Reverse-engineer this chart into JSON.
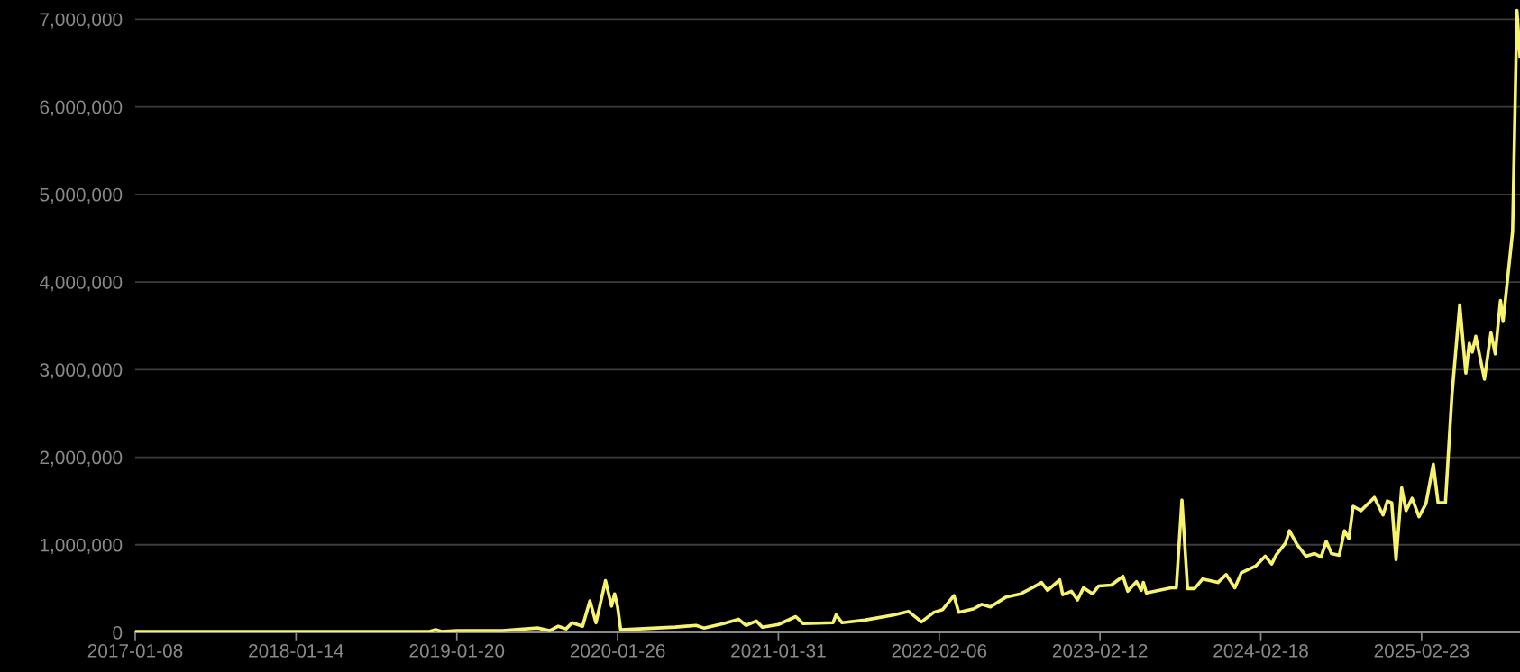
{
  "chart_data": {
    "type": "line",
    "x": [
      "2017-01-08",
      "2017-07-09",
      "2018-01-14",
      "2018-07-15",
      "2018-11-18",
      "2018-12-02",
      "2018-12-16",
      "2019-01-20",
      "2019-05-05",
      "2019-07-25",
      "2019-08-22",
      "2019-09-11",
      "2019-09-29",
      "2019-10-13",
      "2019-11-06",
      "2019-11-23",
      "2019-12-07",
      "2019-12-29",
      "2020-01-12",
      "2020-01-19",
      "2020-01-26",
      "2020-02-02",
      "2020-06-07",
      "2020-07-25",
      "2020-08-12",
      "2020-09-26",
      "2020-10-31",
      "2020-11-17",
      "2020-12-11",
      "2020-12-25",
      "2021-01-31",
      "2021-03-12",
      "2021-03-29",
      "2021-06-06",
      "2021-06-13",
      "2021-06-27",
      "2021-08-18",
      "2021-10-26",
      "2021-11-27",
      "2021-12-27",
      "2022-01-25",
      "2022-02-14",
      "2022-03-12",
      "2022-03-23",
      "2022-04-27",
      "2022-05-15",
      "2022-06-04",
      "2022-07-09",
      "2022-08-13",
      "2022-09-09",
      "2022-09-30",
      "2022-10-14",
      "2022-11-11",
      "2022-11-18",
      "2022-12-08",
      "2022-12-22",
      "2023-01-05",
      "2023-01-26",
      "2023-02-09",
      "2023-03-10",
      "2023-04-06",
      "2023-04-17",
      "2023-05-07",
      "2023-05-18",
      "2023-05-23",
      "2023-05-30",
      "2023-07-26",
      "2023-08-07",
      "2023-08-20",
      "2023-09-02",
      "2023-09-18",
      "2023-10-07",
      "2023-11-11",
      "2023-11-30",
      "2023-12-20",
      "2024-01-04",
      "2024-02-07",
      "2024-02-28",
      "2024-03-14",
      "2024-03-24",
      "2024-04-15",
      "2024-04-24",
      "2024-05-12",
      "2024-06-01",
      "2024-06-21",
      "2024-07-06",
      "2024-07-18",
      "2024-07-30",
      "2024-08-17",
      "2024-08-29",
      "2024-09-08",
      "2024-09-18",
      "2024-10-06",
      "2024-11-06",
      "2024-11-26",
      "2024-12-06",
      "2024-12-16",
      "2024-12-26",
      "2025-01-08",
      "2025-01-18",
      "2025-02-01",
      "2025-02-17",
      "2025-03-05",
      "2025-03-22",
      "2025-04-02",
      "2025-04-19",
      "2025-05-04",
      "2025-05-22",
      "2025-06-05",
      "2025-06-13",
      "2025-06-20",
      "2025-06-28",
      "2025-07-18",
      "2025-08-02",
      "2025-08-12",
      "2025-08-24",
      "2025-08-30",
      "2025-09-21",
      "2025-10-01",
      "2025-10-08"
    ],
    "series": [
      {
        "color": "#f7f36f",
        "values": [
          10000,
          10000,
          10000,
          10000,
          10000,
          30000,
          10000,
          20000,
          20000,
          50000,
          20000,
          70000,
          40000,
          110000,
          70000,
          360000,
          110000,
          590000,
          300000,
          440000,
          290000,
          30000,
          60000,
          80000,
          50000,
          100000,
          150000,
          80000,
          130000,
          60000,
          90000,
          180000,
          100000,
          110000,
          200000,
          110000,
          140000,
          200000,
          240000,
          120000,
          230000,
          260000,
          420000,
          230000,
          270000,
          320000,
          290000,
          400000,
          440000,
          510000,
          570000,
          480000,
          600000,
          430000,
          470000,
          370000,
          510000,
          440000,
          530000,
          540000,
          640000,
          470000,
          580000,
          480000,
          570000,
          450000,
          510000,
          510000,
          1510000,
          500000,
          500000,
          610000,
          570000,
          660000,
          510000,
          680000,
          760000,
          870000,
          780000,
          880000,
          1020000,
          1160000,
          1000000,
          870000,
          900000,
          860000,
          1040000,
          900000,
          880000,
          1160000,
          1070000,
          1440000,
          1390000,
          1540000,
          1340000,
          1500000,
          1480000,
          830000,
          1650000,
          1390000,
          1530000,
          1320000,
          1470000,
          1920000,
          1480000,
          1480000,
          2710000,
          3740000,
          2960000,
          3300000,
          3200000,
          3380000,
          2890000,
          3420000,
          3180000,
          3790000,
          3550000,
          4580000,
          7100000,
          6580000
        ]
      }
    ],
    "xlim": [
      "2017-01-08",
      "2025-10-08"
    ],
    "xticks": [
      "2017-01-08",
      "2018-01-14",
      "2019-01-20",
      "2020-01-26",
      "2021-01-31",
      "2022-02-06",
      "2023-02-12",
      "2024-02-18",
      "2025-02-23"
    ],
    "ylim": [
      0,
      7220000
    ],
    "yticks": [
      0,
      {
        "value": 1000000,
        "label": "1,000,000"
      },
      {
        "value": 2000000,
        "label": "2,000,000"
      },
      {
        "value": 3000000,
        "label": "3,000,000"
      },
      {
        "value": 4000000,
        "label": "4,000,000"
      },
      {
        "value": 5000000,
        "label": "5,000,000"
      },
      {
        "value": 6000000,
        "label": "6,000,000"
      },
      {
        "value": 7000000,
        "label": "7,000,000"
      }
    ],
    "grid": "y",
    "legend": false,
    "marker": "none",
    "line_style": "solid"
  }
}
